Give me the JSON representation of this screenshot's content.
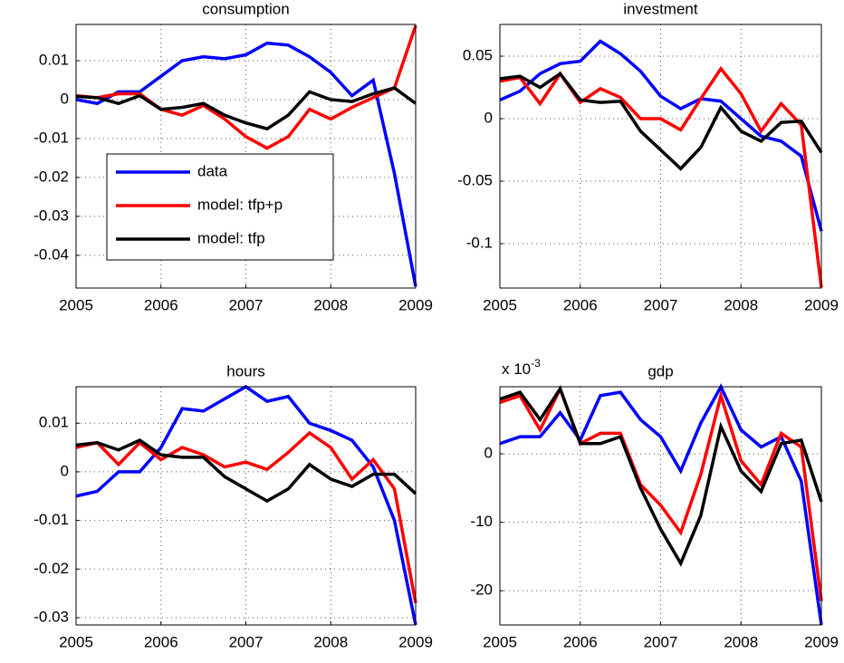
{
  "chart_data": [
    {
      "type": "line",
      "title": "consumption",
      "x": [
        2005,
        2005.25,
        2005.5,
        2005.75,
        2006,
        2006.25,
        2006.5,
        2006.75,
        2007,
        2007.25,
        2007.5,
        2007.75,
        2008,
        2008.25,
        2008.5,
        2008.75,
        2009
      ],
      "xlim": [
        2005,
        2009
      ],
      "xticks": [
        2005,
        2006,
        2007,
        2008,
        2009
      ],
      "ylim": [
        -0.0484,
        0.0193
      ],
      "yticks": [
        -0.04,
        -0.03,
        -0.02,
        -0.01,
        0,
        0.01
      ],
      "grid": true,
      "legend": "lower left",
      "series": [
        {
          "name": "data",
          "color": "#0000ff",
          "values": [
            0,
            -0.001,
            0.002,
            0.002,
            0.006,
            0.01,
            0.011,
            0.0105,
            0.0115,
            0.0145,
            0.014,
            0.011,
            0.007,
            0.001,
            0.005,
            -0.019,
            -0.048
          ]
        },
        {
          "name": "model: tfp+p",
          "color": "#ff0000",
          "values": [
            0.001,
            0.0005,
            0.0015,
            0.0015,
            -0.0025,
            -0.004,
            -0.0015,
            -0.005,
            -0.0095,
            -0.0125,
            -0.0095,
            -0.0025,
            -0.005,
            -0.002,
            0.0005,
            0.003,
            0.019
          ]
        },
        {
          "name": "model: tfp",
          "color": "#000000",
          "values": [
            0.0008,
            0.0005,
            -0.001,
            0.001,
            -0.0025,
            -0.002,
            -0.001,
            -0.004,
            -0.006,
            -0.0075,
            -0.004,
            0.002,
            0,
            -0.0005,
            0.0015,
            0.003,
            -0.001
          ]
        }
      ]
    },
    {
      "type": "line",
      "title": "investment",
      "x": [
        2005,
        2005.25,
        2005.5,
        2005.75,
        2006,
        2006.25,
        2006.5,
        2006.75,
        2007,
        2007.25,
        2007.5,
        2007.75,
        2008,
        2008.25,
        2008.5,
        2008.75,
        2009
      ],
      "xlim": [
        2005,
        2009
      ],
      "xticks": [
        2005,
        2006,
        2007,
        2008,
        2009
      ],
      "ylim": [
        -0.1355,
        0.0754
      ],
      "yticks": [
        -0.1,
        -0.05,
        0,
        0.05
      ],
      "grid": true,
      "series": [
        {
          "color": "#0000ff",
          "values": [
            0.015,
            0.022,
            0.036,
            0.044,
            0.046,
            0.062,
            0.052,
            0.038,
            0.018,
            0.008,
            0.016,
            0.014,
            0,
            -0.014,
            -0.018,
            -0.03,
            -0.09
          ]
        },
        {
          "color": "#ff0000",
          "values": [
            0.03,
            0.033,
            0.012,
            0.036,
            0.013,
            0.024,
            0.017,
            0,
            0,
            -0.009,
            0.016,
            0.04,
            0.02,
            -0.01,
            0.012,
            -0.005,
            -0.135
          ]
        },
        {
          "color": "#000000",
          "values": [
            0.032,
            0.034,
            0.025,
            0.036,
            0.015,
            0.013,
            0.014,
            -0.01,
            -0.025,
            -0.04,
            -0.023,
            0.009,
            -0.01,
            -0.018,
            -0.003,
            -0.002,
            -0.027
          ]
        }
      ]
    },
    {
      "type": "line",
      "title": "hours",
      "x": [
        2005,
        2005.25,
        2005.5,
        2005.75,
        2006,
        2006.25,
        2006.5,
        2006.75,
        2007,
        2007.25,
        2007.5,
        2007.75,
        2008,
        2008.25,
        2008.5,
        2008.75,
        2009
      ],
      "xlim": [
        2005,
        2009
      ],
      "xticks": [
        2005,
        2006,
        2007,
        2008,
        2009
      ],
      "ylim": [
        -0.0315,
        0.0175
      ],
      "yticks": [
        -0.03,
        -0.02,
        -0.01,
        0,
        0.01
      ],
      "grid": true,
      "series": [
        {
          "color": "#0000ff",
          "values": [
            -0.005,
            -0.004,
            0,
            0,
            0.005,
            0.013,
            0.0125,
            0.015,
            0.0175,
            0.0145,
            0.0155,
            0.01,
            0.0085,
            0.0065,
            0.001,
            -0.01,
            -0.0315
          ]
        },
        {
          "color": "#ff0000",
          "values": [
            0.005,
            0.006,
            0.0015,
            0.006,
            0.0025,
            0.005,
            0.0035,
            0.001,
            0.002,
            0.0005,
            0.004,
            0.008,
            0.005,
            -0.0015,
            0.0025,
            -0.0035,
            -0.027
          ]
        },
        {
          "color": "#000000",
          "values": [
            0.0055,
            0.006,
            0.0045,
            0.0065,
            0.0035,
            0.003,
            0.003,
            -0.001,
            -0.0035,
            -0.006,
            -0.0035,
            0.0015,
            -0.0015,
            -0.003,
            -0.0005,
            -0.0005,
            -0.0045
          ]
        }
      ]
    },
    {
      "type": "line",
      "title": "gdp",
      "y_multiplier": {
        "base": "x 10",
        "exponent": "-3"
      },
      "x": [
        2005,
        2005.25,
        2005.5,
        2005.75,
        2006,
        2006.25,
        2006.5,
        2006.75,
        2007,
        2007.25,
        2007.5,
        2007.75,
        2008,
        2008.25,
        2008.5,
        2008.75,
        2009
      ],
      "xlim": [
        2005,
        2009
      ],
      "xticks": [
        2005,
        2006,
        2007,
        2008,
        2009
      ],
      "ylim": [
        -25,
        9.8
      ],
      "yticks": [
        -20,
        -10,
        0
      ],
      "grid": true,
      "series": [
        {
          "color": "#0000ff",
          "values": [
            1.5,
            2.5,
            2.5,
            6,
            2,
            8.5,
            9,
            5,
            2.5,
            -2.5,
            4.5,
            9.8,
            3.5,
            1,
            2.5,
            -4,
            -25
          ]
        },
        {
          "color": "#ff0000",
          "values": [
            7.5,
            8.5,
            3.5,
            9.5,
            1.5,
            3,
            3,
            -4.5,
            -7.5,
            -11.5,
            -3,
            8.5,
            -1,
            -4.5,
            3,
            1,
            -21.5
          ]
        },
        {
          "color": "#000000",
          "values": [
            8,
            9,
            5,
            9.5,
            1.5,
            1.5,
            2.5,
            -5,
            -11,
            -16,
            -9,
            4,
            -2.5,
            -5.5,
            1.5,
            2,
            -7
          ]
        }
      ]
    }
  ]
}
